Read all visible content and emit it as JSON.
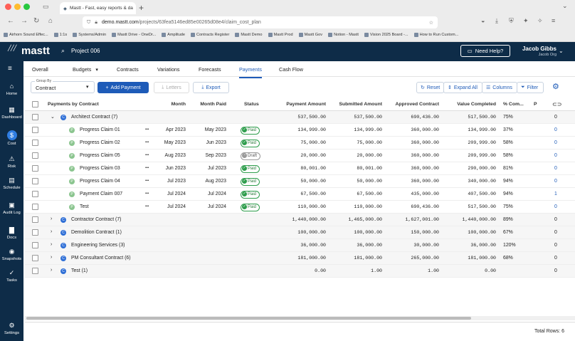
{
  "browser": {
    "tab_title": "Mastt - Fast, easy reports & da",
    "url_host": "demo.mastt.com",
    "url_path": "/projects/63fea5146ed85e00265d08e4/claim_cost_plan",
    "bookmarks": [
      "Airhorn Sound Effec...",
      "1:1s",
      "Systems/Admin",
      "Mastt Drive - OneDr...",
      "Amplitude",
      "Contracts Register",
      "Mastt Demo",
      "Mastt Prod",
      "Mastt Gov",
      "Notion - Mastt",
      "Vision 2025 Board -...",
      "How to Run Custom..."
    ]
  },
  "header": {
    "logo": "mastt",
    "project": "Project 006",
    "help": "Need Help?",
    "user_name": "Jacob Gibbs",
    "user_org": "Jacob Org"
  },
  "sidebar": {
    "items": [
      {
        "label": "Home",
        "icon": "home-icon"
      },
      {
        "label": "Dashboard",
        "icon": "dashboard-icon"
      },
      {
        "label": "Cost",
        "icon": "dollar-icon"
      },
      {
        "label": "Risk",
        "icon": "warning-icon"
      },
      {
        "label": "Schedule",
        "icon": "schedule-icon"
      },
      {
        "label": "Audit Log",
        "icon": "audit-icon"
      },
      {
        "label": "Docs",
        "icon": "folder-icon"
      },
      {
        "label": "Snapshots",
        "icon": "camera-icon"
      },
      {
        "label": "Tasks",
        "icon": "tasks-icon"
      }
    ],
    "settings": "Settings"
  },
  "nav_tabs": [
    "Overall",
    "Budgets",
    "Contracts",
    "Variations",
    "Forecasts",
    "Payments",
    "Cash Flow"
  ],
  "toolbar": {
    "group_by_label": "Group By",
    "group_by_value": "Contract",
    "add_payment": "Add Payment",
    "letters": "Letters",
    "export": "Export",
    "reset": "Reset",
    "expand_all": "Expand All",
    "columns": "Columns",
    "filter": "Filter"
  },
  "table": {
    "headers": [
      "Payments by Contract",
      "Month",
      "Month Paid",
      "Status",
      "Payment Amount",
      "Submitted Amount",
      "Approved Contract",
      "Value Completed",
      "% Com...",
      "P"
    ],
    "rows": [
      {
        "type": "group",
        "expanded": true,
        "name": "Architect Contract",
        "count": "(7)",
        "payment": "537,500.00",
        "submitted": "537,500.00",
        "approved": "690,436.00",
        "completed": "517,500.00",
        "pct": "75%",
        "p": "0"
      },
      {
        "type": "claim",
        "name": "Progress Claim 01",
        "month": "Apr 2023",
        "paid": "May 2023",
        "status": "Paid",
        "payment": "134,999.00",
        "submitted": "134,999.00",
        "approved": "360,000.00",
        "completed": "134,999.00",
        "pct": "37%",
        "p": "0"
      },
      {
        "type": "claim",
        "name": "Progress Claim 02",
        "month": "May 2023",
        "paid": "Jun 2023",
        "status": "Paid",
        "payment": "75,000.00",
        "submitted": "75,000.00",
        "approved": "360,000.00",
        "completed": "209,999.00",
        "pct": "58%",
        "p": "0"
      },
      {
        "type": "claim",
        "name": "Progress Claim 05",
        "month": "Aug 2023",
        "paid": "Sep 2023",
        "status": "Draft",
        "payment": "20,000.00",
        "submitted": "20,000.00",
        "approved": "360,000.00",
        "completed": "209,999.00",
        "pct": "58%",
        "p": "0"
      },
      {
        "type": "claim",
        "name": "Progress Claim 03",
        "month": "Jun 2023",
        "paid": "Jul 2023",
        "status": "Paid",
        "payment": "80,001.00",
        "submitted": "80,001.00",
        "approved": "360,000.00",
        "completed": "290,000.00",
        "pct": "81%",
        "p": "0"
      },
      {
        "type": "claim",
        "name": "Progress Claim 04",
        "month": "Jul 2023",
        "paid": "Aug 2023",
        "status": "Paid",
        "payment": "50,000.00",
        "submitted": "50,000.00",
        "approved": "360,000.00",
        "completed": "340,000.00",
        "pct": "94%",
        "p": "0"
      },
      {
        "type": "claim",
        "name": "Payment Claim 007",
        "month": "Jul 2024",
        "paid": "Jul 2024",
        "status": "Paid",
        "payment": "67,500.00",
        "submitted": "67,500.00",
        "approved": "435,000.00",
        "completed": "407,500.00",
        "pct": "94%",
        "p": "1"
      },
      {
        "type": "claim",
        "name": "Test",
        "month": "Jul 2024",
        "paid": "Jul 2024",
        "status": "Paid",
        "payment": "110,000.00",
        "submitted": "110,000.00",
        "approved": "690,436.00",
        "completed": "517,500.00",
        "pct": "75%",
        "p": "0"
      },
      {
        "type": "group",
        "expanded": false,
        "name": "Contractor Contract",
        "count": "(7)",
        "payment": "1,440,000.00",
        "submitted": "1,465,000.00",
        "approved": "1,627,001.00",
        "completed": "1,440,000.00",
        "pct": "89%",
        "p": "0"
      },
      {
        "type": "group",
        "expanded": false,
        "name": "Demolition Contract",
        "count": "(1)",
        "payment": "100,000.00",
        "submitted": "100,000.00",
        "approved": "150,000.00",
        "completed": "100,000.00",
        "pct": "67%",
        "p": "0"
      },
      {
        "type": "group",
        "expanded": false,
        "name": "Engineering Services",
        "count": "(3)",
        "payment": "36,000.00",
        "submitted": "36,000.00",
        "approved": "30,000.00",
        "completed": "36,000.00",
        "pct": "120%",
        "p": "0"
      },
      {
        "type": "group",
        "expanded": false,
        "name": "PM Consultant Contract",
        "count": "(6)",
        "payment": "181,000.00",
        "submitted": "181,000.00",
        "approved": "265,000.00",
        "completed": "181,000.00",
        "pct": "68%",
        "p": "0"
      },
      {
        "type": "group",
        "expanded": false,
        "name": "Test",
        "count": "(1)",
        "payment": "0.00",
        "submitted": "1.00",
        "approved": "1.00",
        "completed": "0.00",
        "pct": "",
        "p": "0"
      }
    ]
  },
  "footer": {
    "total_rows": "Total Rows: 6"
  },
  "colors": {
    "navy": "#0e2c48",
    "accent": "#1e5bb8",
    "paid": "#2e9d4c",
    "contract_icon": "#2f6fd6"
  }
}
